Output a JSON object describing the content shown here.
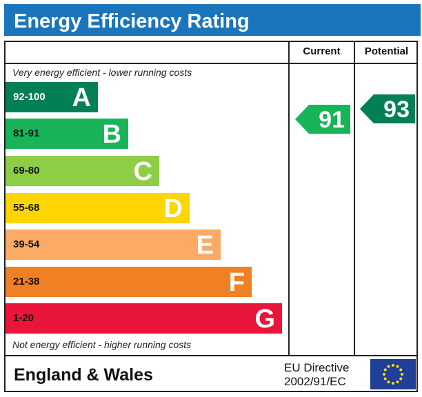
{
  "title": "Energy Efficiency Rating",
  "headers": {
    "current": "Current",
    "potential": "Potential"
  },
  "notes": {
    "top": "Very energy efficient - lower running costs",
    "bottom": "Not energy efficient - higher running costs"
  },
  "footer": {
    "region": "England & Wales",
    "directive_line1": "EU Directive",
    "directive_line2": "2002/91/EC",
    "flag": "eu-flag-icon"
  },
  "chart_data": {
    "type": "bar",
    "title": "Energy Efficiency Rating",
    "bands": [
      {
        "range": "92-100",
        "letter": "A",
        "color": "#008054",
        "range_color": "#ffffff"
      },
      {
        "range": "81-91",
        "letter": "B",
        "color": "#19b459",
        "range_color": "#111111"
      },
      {
        "range": "69-80",
        "letter": "C",
        "color": "#8dce46",
        "range_color": "#111111"
      },
      {
        "range": "55-68",
        "letter": "D",
        "color": "#ffd500",
        "range_color": "#111111"
      },
      {
        "range": "39-54",
        "letter": "E",
        "color": "#fcaa65",
        "range_color": "#111111"
      },
      {
        "range": "21-38",
        "letter": "F",
        "color": "#ef8023",
        "range_color": "#111111"
      },
      {
        "range": "1-20",
        "letter": "G",
        "color": "#e9153b",
        "range_color": "#111111"
      }
    ],
    "current": {
      "value": 91,
      "band": "B",
      "color": "#19b459"
    },
    "potential": {
      "value": 93,
      "band": "A",
      "color": "#008054"
    }
  }
}
